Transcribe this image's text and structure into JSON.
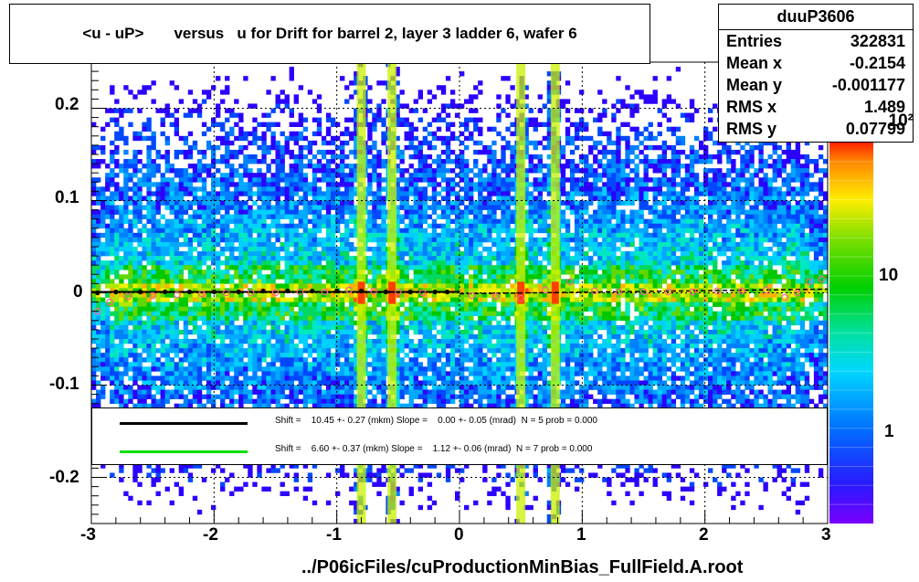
{
  "chart_data": {
    "type": "heatmap",
    "title": "<u - uP>       versus   u for Drift for barrel 2, layer 3 ladder 6, wafer 6",
    "xlabel": "../P06icFiles/cuProductionMinBias_FullField.A.root",
    "ylabel": "",
    "xlim": [
      -3,
      3
    ],
    "ylim": [
      -0.25,
      0.25
    ],
    "x_ticks": [
      "-3",
      "-2",
      "-1",
      "0",
      "1",
      "2",
      "3"
    ],
    "y_ticks": [
      "0.2",
      "0.1",
      "0",
      "-0.1",
      "-0.2"
    ],
    "colorbar_ticks": [
      "1",
      "10",
      "10²"
    ],
    "colorbar_scale": "log",
    "grid": true,
    "stats": {
      "name": "duuP3606",
      "rows": [
        {
          "label": "Entries",
          "value": "322831"
        },
        {
          "label": "Mean x",
          "value": "-0.2154"
        },
        {
          "label": "Mean y",
          "value": "-0.001177"
        },
        {
          "label": "RMS x",
          "value": "1.489"
        },
        {
          "label": "RMS y",
          "value": "0.07799"
        }
      ]
    },
    "legend": [
      {
        "color": "#000000",
        "text": "Shift =    10.45 +- 0.27 (mkm) Slope =    0.00 +- 0.05 (mrad)  N = 5 prob = 0.000"
      },
      {
        "color": "#00dd00",
        "text": "Shift =    6.60 +- 0.37 (mkm) Slope =    1.12 +- 0.06 (mrad)  N = 7 prob = 0.000"
      }
    ],
    "bright_bands_x": [
      -0.8,
      -0.55,
      0.5,
      0.78
    ],
    "profile_black": {
      "x": [
        -2.95,
        -2.8,
        -2.6,
        -2.4,
        -2.2,
        -2.0,
        -1.8,
        -1.6,
        -1.4,
        -1.2,
        -1.0,
        -0.8,
        -0.6,
        -0.4,
        -0.2,
        -0.1
      ],
      "y": [
        0.0,
        0.001,
        0.001,
        0.001,
        0.001,
        0.001,
        0.001,
        0.002,
        0.002,
        0.002,
        0.002,
        0.002,
        0.001,
        0.001,
        0.001,
        0.001
      ]
    },
    "profile_open": {
      "x": [
        -2.95,
        -2.85,
        -2.7,
        -2.5,
        -2.3,
        -2.1,
        -1.9,
        -1.7,
        -1.5,
        -1.3,
        -1.1,
        -0.9,
        -0.7,
        -0.5,
        -0.3,
        0.1,
        0.3,
        0.5,
        0.7,
        0.9,
        1.1,
        1.3,
        1.5,
        1.7,
        1.9,
        2.1,
        2.3,
        2.5,
        2.65,
        2.75,
        2.85,
        2.95
      ],
      "y": [
        -0.02,
        -0.01,
        -0.004,
        -0.003,
        -0.002,
        -0.001,
        0.0,
        0.0,
        0.0,
        0.001,
        0.001,
        0.003,
        0.002,
        0.001,
        0.0,
        -0.003,
        -0.004,
        -0.006,
        0.003,
        0.012,
        0.002,
        0.001,
        0.001,
        0.001,
        0.001,
        0.002,
        0.002,
        0.003,
        -0.005,
        0.0,
        0.012,
        0.015
      ]
    },
    "fit_black": {
      "x": [
        -3,
        0
      ],
      "y": [
        0.001,
        0.001
      ]
    },
    "fit_dash": {
      "x": [
        0,
        3
      ],
      "y": [
        -0.001,
        0.004
      ]
    }
  }
}
